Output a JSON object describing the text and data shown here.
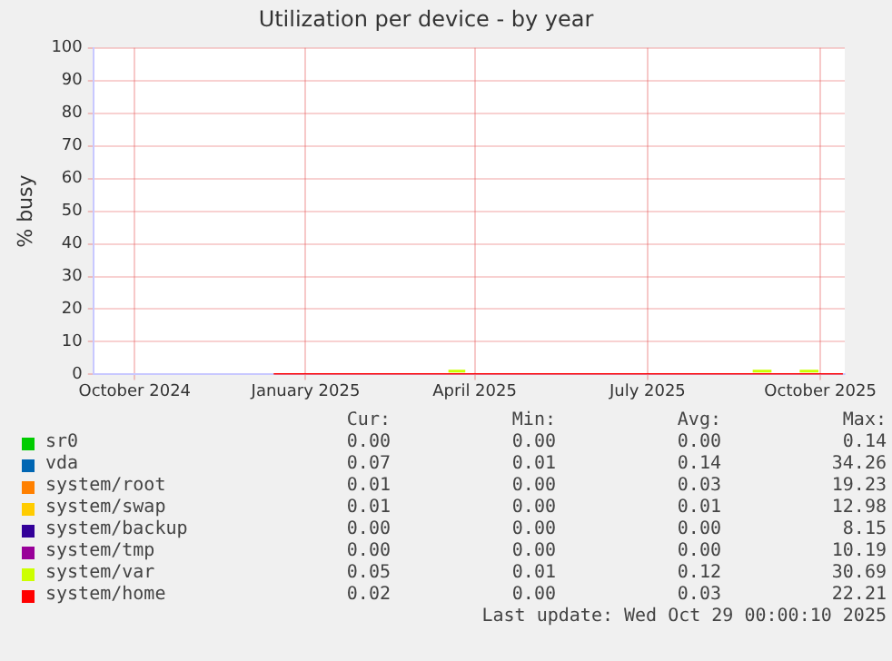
{
  "chart_data": {
    "type": "line",
    "title": "Utilization per device - by year",
    "ylabel": "% busy",
    "x": [
      "2024-12-29",
      "2025-02-01",
      "2025-03-01",
      "2025-03-28",
      "2025-04-05",
      "2025-05-01",
      "2025-06-01",
      "2025-07-01",
      "2025-08-01",
      "2025-09-01",
      "2025-09-15",
      "2025-10-01",
      "2025-10-10",
      "2025-10-28"
    ],
    "series": [
      {
        "name": "sr0",
        "color": "#00cc00",
        "values": [
          null,
          null,
          null,
          null,
          null,
          null,
          null,
          null,
          null,
          null,
          null,
          null,
          null,
          null
        ]
      },
      {
        "name": "vda",
        "color": "#0066b3",
        "values": [
          null,
          null,
          null,
          null,
          null,
          null,
          null,
          null,
          null,
          null,
          null,
          null,
          null,
          null
        ]
      },
      {
        "name": "system/root",
        "color": "#ff8000",
        "values": [
          null,
          null,
          null,
          null,
          null,
          null,
          null,
          null,
          null,
          null,
          null,
          null,
          null,
          null
        ]
      },
      {
        "name": "system/swap",
        "color": "#ffcc00",
        "values": [
          null,
          null,
          null,
          null,
          null,
          null,
          null,
          null,
          null,
          null,
          null,
          null,
          null,
          null
        ]
      },
      {
        "name": "system/backup",
        "color": "#330099",
        "values": [
          null,
          null,
          null,
          null,
          null,
          null,
          null,
          null,
          null,
          null,
          null,
          null,
          null,
          null
        ]
      },
      {
        "name": "system/tmp",
        "color": "#990099",
        "values": [
          null,
          null,
          null,
          null,
          null,
          null,
          null,
          null,
          null,
          null,
          null,
          null,
          null,
          null
        ]
      },
      {
        "name": "system/var",
        "color": "#ccff00",
        "x": [
          "2025-04-01",
          "2025-04-10",
          "2025-06-01",
          "2025-09-10",
          "2025-09-20",
          "2025-10-01",
          "2025-10-05",
          "2025-10-15"
        ],
        "values": [
          1,
          1,
          null,
          1,
          1,
          null,
          1,
          1
        ]
      },
      {
        "name": "system/home",
        "color": "#ff0000",
        "values": [
          0,
          0,
          0,
          0,
          0,
          0,
          0,
          0,
          0,
          0,
          0,
          0,
          0,
          0
        ]
      }
    ],
    "xlim": [
      "2024-09-24",
      "2025-10-29"
    ],
    "xticks": [
      {
        "value": "2024-10-16",
        "label": "October 2024"
      },
      {
        "value": "2025-01-15",
        "label": "January 2025"
      },
      {
        "value": "2025-04-15",
        "label": "April 2025"
      },
      {
        "value": "2025-07-16",
        "label": "July 2025"
      },
      {
        "value": "2025-10-16",
        "label": "October 2025"
      }
    ],
    "ylim": [
      0,
      100
    ],
    "yticks": [
      0,
      10,
      20,
      30,
      40,
      50,
      60,
      70,
      80,
      90,
      100
    ],
    "grid": true,
    "legend": "bottom",
    "marker": "none",
    "line_style": "solid",
    "annotations": [
      "Cur:",
      "Min:",
      "Avg:",
      "Max:",
      "0.00",
      "0.00",
      "0.00",
      "0.14",
      "0.07",
      "0.01",
      "0.14",
      "34.26",
      "0.01",
      "0.00",
      "0.03",
      "19.23",
      "0.01",
      "0.00",
      "0.01",
      "12.98",
      "0.00",
      "0.00",
      "0.00",
      "8.15",
      "0.00",
      "0.00",
      "0.00",
      "10.19",
      "0.05",
      "0.01",
      "0.12",
      "30.69",
      "0.02",
      "0.00",
      "0.03",
      "22.21",
      "Last update: Wed Oct 29 00:00:10 2025"
    ]
  }
}
